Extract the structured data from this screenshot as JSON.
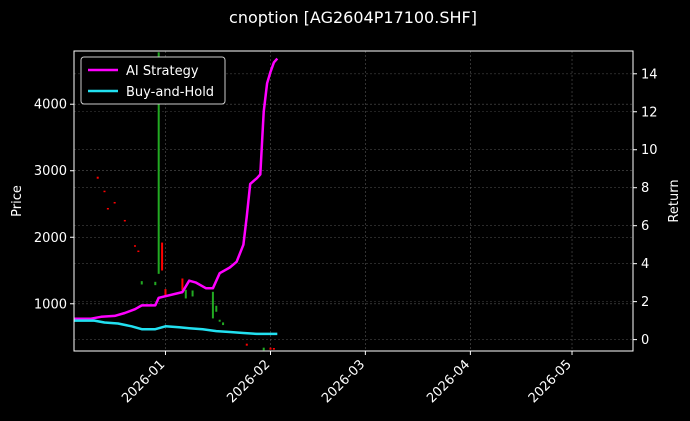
{
  "chart_data": {
    "type": "line",
    "title": "cnoption [AG2604P17100.SHF]",
    "ylabel_left": "Price",
    "ylabel_right": "Return",
    "xlim": [
      "2025-12-05",
      "2026-05-19"
    ],
    "ylim_left": [
      290,
      4800
    ],
    "ylim_right": [
      -0.6,
      15.2
    ],
    "x_ticks": [
      "2026-01",
      "2026-02",
      "2026-03",
      "2026-04",
      "2026-05"
    ],
    "y_left_ticks": [
      1000,
      2000,
      3000,
      4000
    ],
    "y_right_ticks": [
      0,
      2,
      4,
      6,
      8,
      10,
      12,
      14
    ],
    "grid": true,
    "legend_position": "top-left",
    "series": [
      {
        "name": "AI Strategy",
        "axis": "right",
        "color": "#ff00ff",
        "points": [
          [
            "2025-12-05",
            1.1
          ],
          [
            "2025-12-10",
            1.1
          ],
          [
            "2025-12-13",
            1.2
          ],
          [
            "2025-12-17",
            1.25
          ],
          [
            "2025-12-20",
            1.4
          ],
          [
            "2025-12-23",
            1.6
          ],
          [
            "2025-12-25",
            1.8
          ],
          [
            "2025-12-29",
            1.8
          ],
          [
            "2025-12-30",
            2.2
          ],
          [
            "2026-01-06",
            2.5
          ],
          [
            "2026-01-08",
            3.1
          ],
          [
            "2026-01-10",
            3.0
          ],
          [
            "2026-01-13",
            2.7
          ],
          [
            "2026-01-15",
            2.7
          ],
          [
            "2026-01-17",
            3.5
          ],
          [
            "2026-01-20",
            3.8
          ],
          [
            "2026-01-22",
            4.1
          ],
          [
            "2026-01-24",
            5.0
          ],
          [
            "2026-01-25",
            6.5
          ],
          [
            "2026-01-26",
            8.2
          ],
          [
            "2026-01-28",
            8.5
          ],
          [
            "2026-01-29",
            8.7
          ],
          [
            "2026-01-30",
            12.0
          ],
          [
            "2026-01-31",
            13.5
          ],
          [
            "2026-02-01",
            14.1
          ],
          [
            "2026-02-02",
            14.6
          ],
          [
            "2026-02-03",
            14.8
          ]
        ]
      },
      {
        "name": "Buy-and-Hold",
        "axis": "right",
        "color": "#22e0f0",
        "points": [
          [
            "2025-12-05",
            1.0
          ],
          [
            "2025-12-11",
            1.0
          ],
          [
            "2025-12-14",
            0.9
          ],
          [
            "2025-12-18",
            0.85
          ],
          [
            "2025-12-22",
            0.7
          ],
          [
            "2025-12-25",
            0.55
          ],
          [
            "2025-12-29",
            0.55
          ],
          [
            "2026-01-01",
            0.7
          ],
          [
            "2026-01-05",
            0.65
          ],
          [
            "2026-01-08",
            0.6
          ],
          [
            "2026-01-12",
            0.55
          ],
          [
            "2026-01-16",
            0.45
          ],
          [
            "2026-01-20",
            0.4
          ],
          [
            "2026-01-24",
            0.35
          ],
          [
            "2026-01-28",
            0.3
          ],
          [
            "2026-02-03",
            0.3
          ]
        ]
      }
    ],
    "candles": [
      {
        "x": "2025-12-12",
        "y0": 2880,
        "y1": 2910,
        "color": "#ff0000"
      },
      {
        "x": "2025-12-14",
        "y0": 2680,
        "y1": 2700,
        "color": "#ff0000"
      },
      {
        "x": "2025-12-15",
        "y0": 2420,
        "y1": 2440,
        "color": "#ff0000"
      },
      {
        "x": "2025-12-17",
        "y0": 2510,
        "y1": 2530,
        "color": "#ff0000"
      },
      {
        "x": "2025-12-20",
        "y0": 2240,
        "y1": 2260,
        "color": "#ff0000"
      },
      {
        "x": "2025-12-23",
        "y0": 1860,
        "y1": 1880,
        "color": "#ff0000"
      },
      {
        "x": "2025-12-24",
        "y0": 1780,
        "y1": 1800,
        "color": "#ff0000"
      },
      {
        "x": "2025-12-25",
        "y0": 1290,
        "y1": 1340,
        "color": "#22aa22"
      },
      {
        "x": "2025-12-29",
        "y0": 1280,
        "y1": 1330,
        "color": "#22aa22"
      },
      {
        "x": "2025-12-30",
        "y0": 1450,
        "y1": 4780,
        "color": "#22aa22"
      },
      {
        "x": "2025-12-31",
        "y0": 1500,
        "y1": 1920,
        "color": "#ff0000"
      },
      {
        "x": "2026-01-01",
        "y0": 1100,
        "y1": 1220,
        "color": "#ff0000"
      },
      {
        "x": "2026-01-06",
        "y0": 1200,
        "y1": 1380,
        "color": "#ff0000"
      },
      {
        "x": "2026-01-07",
        "y0": 1080,
        "y1": 1210,
        "color": "#22aa22"
      },
      {
        "x": "2026-01-09",
        "y0": 1110,
        "y1": 1200,
        "color": "#22aa22"
      },
      {
        "x": "2026-01-15",
        "y0": 780,
        "y1": 1180,
        "color": "#22aa22"
      },
      {
        "x": "2026-01-16",
        "y0": 880,
        "y1": 970,
        "color": "#22aa22"
      },
      {
        "x": "2026-01-17",
        "y0": 730,
        "y1": 760,
        "color": "#22aa22"
      },
      {
        "x": "2026-01-18",
        "y0": 680,
        "y1": 720,
        "color": "#22aa22"
      },
      {
        "x": "2026-01-25",
        "y0": 370,
        "y1": 400,
        "color": "#ff0000"
      },
      {
        "x": "2026-01-30",
        "y0": 300,
        "y1": 340,
        "color": "#22aa22"
      },
      {
        "x": "2026-02-01",
        "y0": 310,
        "y1": 340,
        "color": "#ff0000"
      },
      {
        "x": "2026-02-02",
        "y0": 310,
        "y1": 335,
        "color": "#ff0000"
      }
    ]
  }
}
